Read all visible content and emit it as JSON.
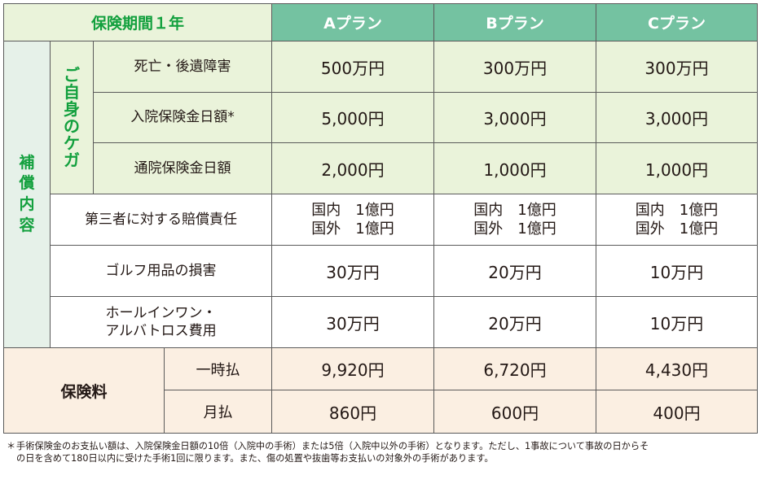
{
  "header": {
    "period": "保険期間１年",
    "plans": [
      "Aプラン",
      "Bプラン",
      "Cプラン"
    ]
  },
  "coverage": {
    "category": "補償内容",
    "subgroup": "ご自身のケガ",
    "injury_rows": [
      {
        "label": "死亡・後遺障害",
        "values": [
          "500万円",
          "300万円",
          "300万円"
        ]
      },
      {
        "label": "入院保険金日額*",
        "values": [
          "5,000円",
          "3,000円",
          "3,000円"
        ]
      },
      {
        "label": "通院保険金日額",
        "values": [
          "2,000円",
          "1,000円",
          "1,000円"
        ]
      }
    ],
    "liability": {
      "label": "第三者に対する賠償責任",
      "values": [
        [
          "国内　1億円",
          "国外　1億円"
        ],
        [
          "国内　1億円",
          "国外　1億円"
        ],
        [
          "国内　1億円",
          "国外　1億円"
        ]
      ]
    },
    "golf_goods": {
      "label": "ゴルフ用品の損害",
      "values": [
        "30万円",
        "20万円",
        "10万円"
      ]
    },
    "hole_in_one": {
      "label_lines": [
        "ホールインワン・",
        "アルバトロス費用"
      ],
      "values": [
        "30万円",
        "20万円",
        "10万円"
      ]
    }
  },
  "premium": {
    "label": "保険料",
    "rows": [
      {
        "label": "一時払",
        "values": [
          "9,920円",
          "6,720円",
          "4,430円"
        ]
      },
      {
        "label": "月払",
        "values": [
          "860円",
          "600円",
          "400円"
        ]
      }
    ]
  },
  "footnote": {
    "mark": "＊",
    "text": "手術保険金のお支払い額は、入院保険金日額の10倍（入院中の手術）または5倍（入院中以外の手術）となります。ただし、1事故について事故の日からその日を含めて180日以内に受けた手術1回に限ります。また、傷の処置や抜歯等お支払いの対象外の手術があります。"
  },
  "colors": {
    "plan_header_bg": "#74c2a1",
    "accent_green_text": "#13a03e",
    "light_green_bg": "#eaf3da",
    "category_bg": "#e6f1e9",
    "premium_bg": "#fbefe2",
    "border": "#5a5a5a"
  }
}
